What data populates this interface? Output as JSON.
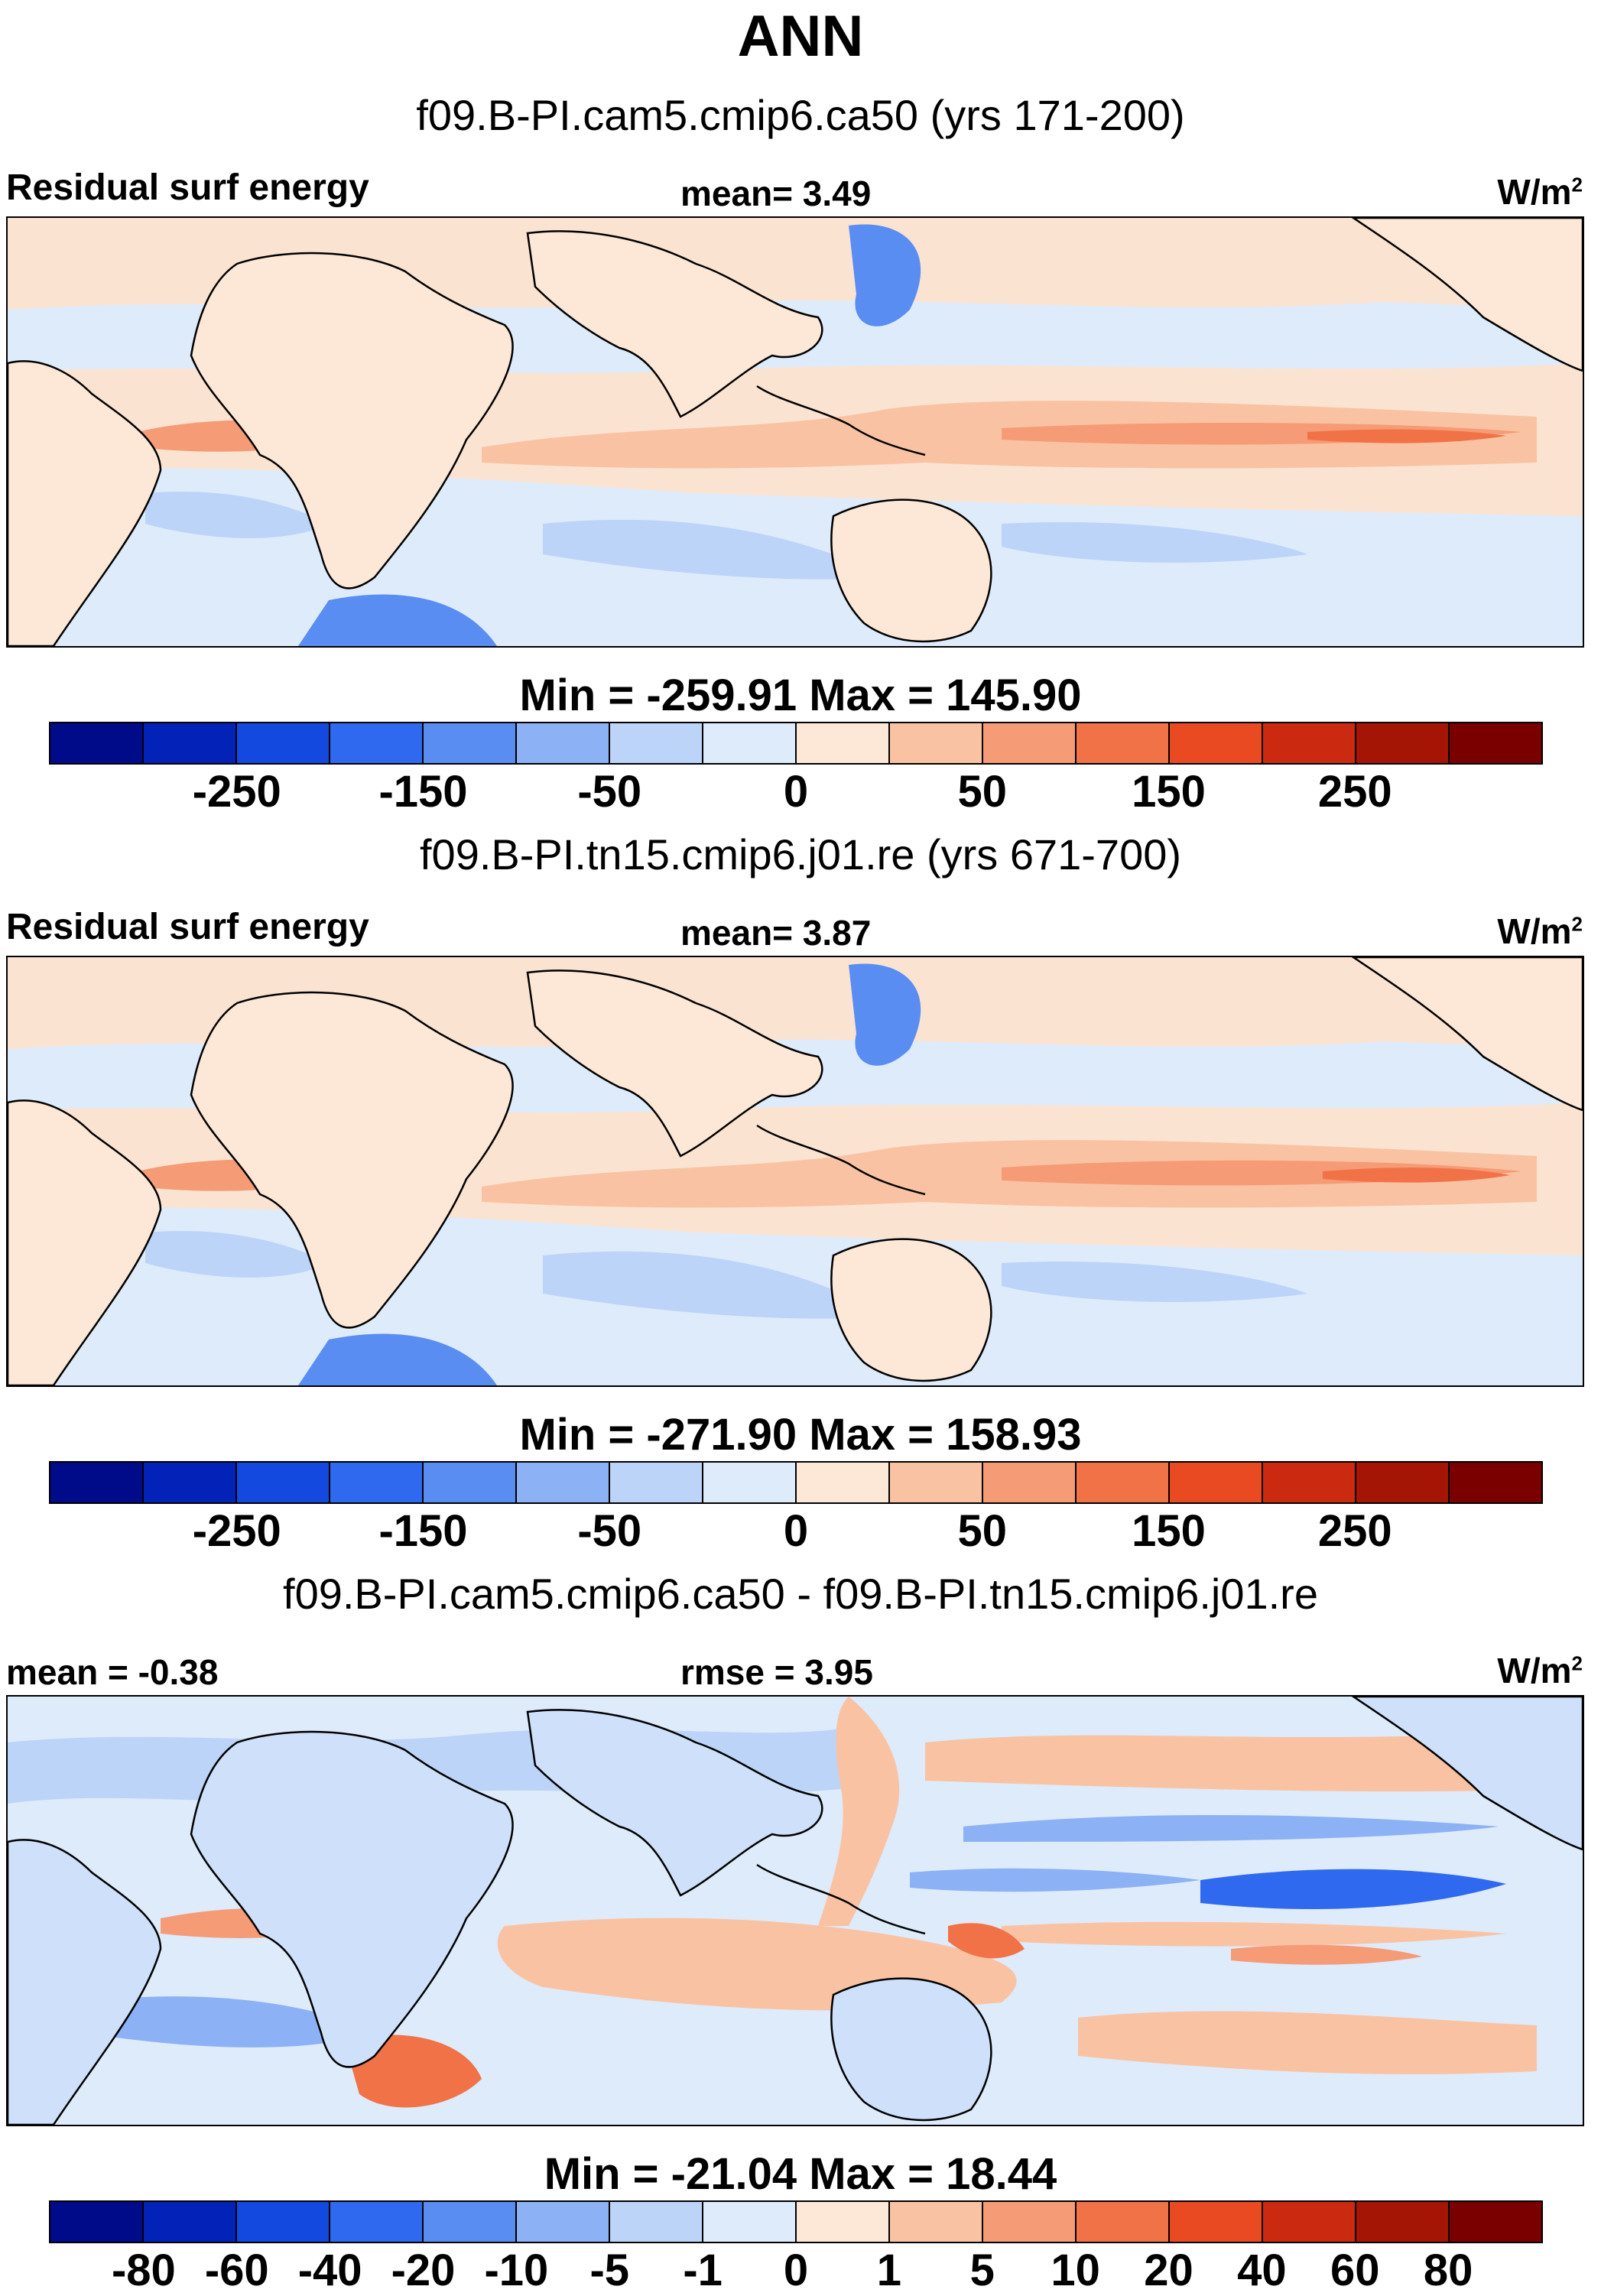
{
  "figure": {
    "title": "ANN",
    "units_label": "W/m",
    "units_sup": "2"
  },
  "panels": [
    {
      "case": "f09.B-PI.cam5.cmip6.ca50 (yrs 171-200)",
      "variable": "Residual surf energy",
      "mean_text": "mean=   3.49",
      "minmax": "Min = -259.91 Max = 145.90",
      "colorbar_labels": [
        "-250",
        "-150",
        "-50",
        "0",
        "50",
        "150",
        "250"
      ]
    },
    {
      "case": "f09.B-PI.tn15.cmip6.j01.re (yrs 671-700)",
      "variable": "Residual surf energy",
      "mean_text": "mean=   3.87",
      "minmax": "Min = -271.90 Max = 158.93",
      "colorbar_labels": [
        "-250",
        "-150",
        "-50",
        "0",
        "50",
        "150",
        "250"
      ]
    },
    {
      "case": "f09.B-PI.cam5.cmip6.ca50 - f09.B-PI.tn15.cmip6.j01.re",
      "mean_text": "mean =  -0.38",
      "rmse_text": "rmse =   3.95",
      "minmax": "Min = -21.04 Max =  18.44",
      "colorbar_labels": [
        "-80",
        "-60",
        "-40",
        "-20",
        "-10",
        "-5",
        "-1",
        "0",
        "1",
        "5",
        "10",
        "20",
        "40",
        "60",
        "80"
      ]
    }
  ],
  "colorbar_colors": [
    "#000b8a",
    "#0323b8",
    "#1449e0",
    "#2e69ef",
    "#5a8df2",
    "#8cb1f5",
    "#bcd4f8",
    "#deebfb",
    "#fde8d8",
    "#f9c3a3",
    "#f59b76",
    "#f27248",
    "#ea4a22",
    "#cc2a10",
    "#a41505",
    "#7a0000"
  ]
}
